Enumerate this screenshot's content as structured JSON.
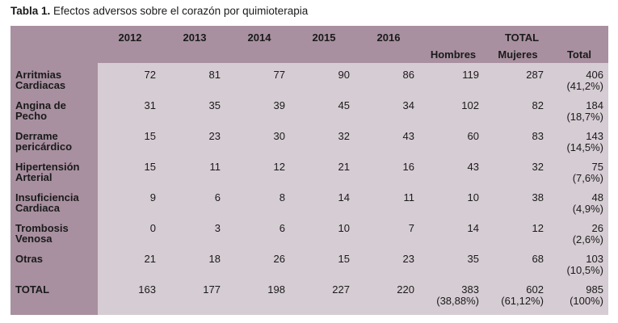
{
  "caption": {
    "prefix": "Tabla 1.",
    "text": "Efectos adversos sobre el corazón por quimioterapia"
  },
  "header": {
    "years": [
      "2012",
      "2013",
      "2014",
      "2015",
      "2016"
    ],
    "total_group": "TOTAL",
    "sub": [
      "Hombres",
      "Mujeres",
      "Total"
    ]
  },
  "rows": [
    {
      "label_line1": "Arritmias",
      "label_line2": "Cardiacas",
      "values": [
        "72",
        "81",
        "77",
        "90",
        "86"
      ],
      "hombres": "119",
      "mujeres": "287",
      "total": "406",
      "total_pct": "(41,2%)"
    },
    {
      "label_line1": "Angina de",
      "label_line2": "Pecho",
      "values": [
        "31",
        "35",
        "39",
        "45",
        "34"
      ],
      "hombres": "102",
      "mujeres": "82",
      "total": "184",
      "total_pct": "(18,7%)"
    },
    {
      "label_line1": "Derrame",
      "label_line2": "pericárdico",
      "values": [
        "15",
        "23",
        "30",
        "32",
        "43"
      ],
      "hombres": "60",
      "mujeres": "83",
      "total": "143",
      "total_pct": "(14,5%)"
    },
    {
      "label_line1": "Hipertensión",
      "label_line2": "Arterial",
      "values": [
        "15",
        "11",
        "12",
        "21",
        "16"
      ],
      "hombres": "43",
      "mujeres": "32",
      "total": "75",
      "total_pct": "(7,6%)"
    },
    {
      "label_line1": "Insuficiencia",
      "label_line2": "Cardiaca",
      "values": [
        "9",
        "6",
        "8",
        "14",
        "11"
      ],
      "hombres": "10",
      "mujeres": "38",
      "total": "48",
      "total_pct": "(4,9%)"
    },
    {
      "label_line1": "Trombosis",
      "label_line2": "Venosa",
      "values": [
        "0",
        "3",
        "6",
        "10",
        "7"
      ],
      "hombres": "14",
      "mujeres": "12",
      "total": "26",
      "total_pct": "(2,6%)"
    },
    {
      "label_line1": "Otras",
      "label_line2": "",
      "values": [
        "21",
        "18",
        "26",
        "15",
        "23"
      ],
      "hombres": "35",
      "mujeres": "68",
      "total": "103",
      "total_pct": "(10,5%)"
    }
  ],
  "total_row": {
    "label": "TOTAL",
    "values": [
      "163",
      "177",
      "198",
      "227",
      "220"
    ],
    "hombres": "383",
    "hombres_pct": "(38,88%)",
    "mujeres": "602",
    "mujeres_pct": "(61,12%)",
    "total": "985",
    "total_pct": "(100%)"
  },
  "colors": {
    "header_bg": "#a890a0",
    "cell_bg": "#d6ccd3"
  }
}
